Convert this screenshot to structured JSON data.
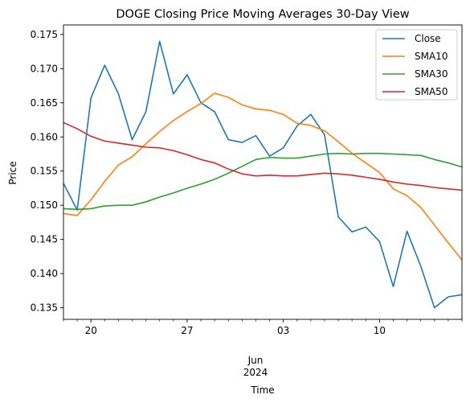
{
  "chart_data": {
    "type": "line",
    "title": "DOGE Closing Price Moving Averages 30-Day View",
    "xlabel": "Time",
    "ylabel": "Price",
    "xlim": [
      "2024-05-18",
      "2024-06-16"
    ],
    "ylim": [
      0.1333,
      0.1764
    ],
    "grid": false,
    "legend_position": "top-right",
    "x_major_ticks": [
      {
        "date": "2024-05-20",
        "label": "20"
      },
      {
        "date": "2024-05-27",
        "label": "27"
      },
      {
        "date": "2024-06-03",
        "label": "03"
      },
      {
        "date": "2024-06-10",
        "label": "10"
      }
    ],
    "x_minor_ticks": [
      "2024-05-18",
      "2024-05-19",
      "2024-05-21",
      "2024-05-22",
      "2024-05-23",
      "2024-05-24",
      "2024-05-25",
      "2024-05-26",
      "2024-05-28",
      "2024-05-29",
      "2024-05-30",
      "2024-05-31",
      "2024-06-01",
      "2024-06-02",
      "2024-06-04",
      "2024-06-05",
      "2024-06-06",
      "2024-06-07",
      "2024-06-08",
      "2024-06-09",
      "2024-06-11",
      "2024-06-12",
      "2024-06-13",
      "2024-06-14",
      "2024-06-15",
      "2024-06-16"
    ],
    "x_secondary_label": {
      "month": "Jun",
      "year": "2024"
    },
    "y_ticks": [
      {
        "value": 0.135,
        "label": "0.135"
      },
      {
        "value": 0.14,
        "label": "0.140"
      },
      {
        "value": 0.145,
        "label": "0.145"
      },
      {
        "value": 0.15,
        "label": "0.150"
      },
      {
        "value": 0.155,
        "label": "0.155"
      },
      {
        "value": 0.16,
        "label": "0.160"
      },
      {
        "value": 0.165,
        "label": "0.165"
      },
      {
        "value": 0.17,
        "label": "0.170"
      },
      {
        "value": 0.175,
        "label": "0.175"
      }
    ],
    "x": [
      "2024-05-18",
      "2024-05-19",
      "2024-05-20",
      "2024-05-21",
      "2024-05-22",
      "2024-05-23",
      "2024-05-24",
      "2024-05-25",
      "2024-05-26",
      "2024-05-27",
      "2024-05-28",
      "2024-05-29",
      "2024-05-30",
      "2024-05-31",
      "2024-06-01",
      "2024-06-02",
      "2024-06-03",
      "2024-06-04",
      "2024-06-05",
      "2024-06-06",
      "2024-06-07",
      "2024-06-08",
      "2024-06-09",
      "2024-06-10",
      "2024-06-11",
      "2024-06-12",
      "2024-06-13",
      "2024-06-14",
      "2024-06-15",
      "2024-06-16"
    ],
    "series": [
      {
        "name": "Close",
        "color": "#1f77b4",
        "values": [
          0.1532,
          0.1493,
          0.1657,
          0.1705,
          0.1663,
          0.1596,
          0.1637,
          0.174,
          0.1663,
          0.1691,
          0.165,
          0.1637,
          0.1596,
          0.1592,
          0.1602,
          0.1572,
          0.1584,
          0.1616,
          0.1633,
          0.1603,
          0.1483,
          0.1461,
          0.1468,
          0.1447,
          0.1381,
          0.1462,
          0.1411,
          0.135,
          0.1366,
          0.1369
        ]
      },
      {
        "name": "SMA10",
        "color": "#ff7f0e",
        "values": [
          0.1488,
          0.1485,
          0.1508,
          0.1535,
          0.1559,
          0.1571,
          0.159,
          0.1608,
          0.1624,
          0.1637,
          0.1649,
          0.1664,
          0.1658,
          0.1647,
          0.1641,
          0.1639,
          0.1633,
          0.162,
          0.1617,
          0.1609,
          0.1593,
          0.1576,
          0.1562,
          0.1548,
          0.1524,
          0.1514,
          0.1497,
          0.1471,
          0.1445,
          0.142
        ]
      },
      {
        "name": "SMA30",
        "color": "#2ca02c",
        "values": [
          0.1495,
          0.1494,
          0.1495,
          0.1499,
          0.15,
          0.15,
          0.1505,
          0.1512,
          0.1518,
          0.1525,
          0.1531,
          0.1538,
          0.1547,
          0.1557,
          0.1567,
          0.157,
          0.1569,
          0.1569,
          0.1572,
          0.1575,
          0.1576,
          0.1575,
          0.1576,
          0.1576,
          0.1575,
          0.1574,
          0.1573,
          0.1567,
          0.1562,
          0.1556
        ]
      },
      {
        "name": "SMA50",
        "color": "#d62728",
        "values": [
          0.1621,
          0.1612,
          0.1601,
          0.1594,
          0.1591,
          0.1588,
          0.1585,
          0.1584,
          0.158,
          0.1574,
          0.1567,
          0.1562,
          0.1553,
          0.1546,
          0.1543,
          0.1544,
          0.1543,
          0.1543,
          0.1545,
          0.1547,
          0.1546,
          0.1544,
          0.1541,
          0.1538,
          0.1534,
          0.1531,
          0.1529,
          0.1526,
          0.1524,
          0.1522
        ]
      }
    ]
  }
}
